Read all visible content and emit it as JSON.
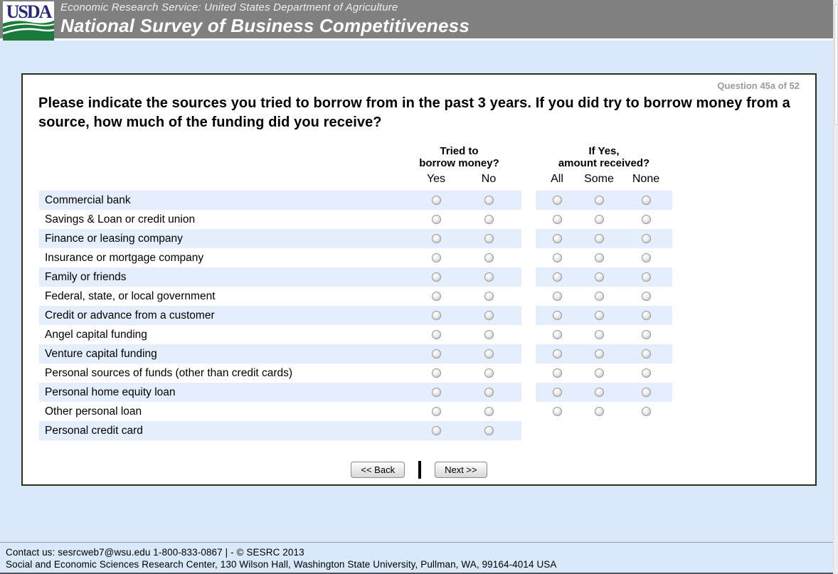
{
  "header": {
    "logo_text": "USDA",
    "agency_line": "Economic Research Service: United States Department of Agriculture",
    "survey_title": "National Survey of Business Competitiveness"
  },
  "question": {
    "progress_label": "Question 45a of 52",
    "text": "Please indicate the sources you tried to borrow from in the past 3 years. If you did try to borrow money from a source, how much of the funding did you receive?"
  },
  "table": {
    "group_headers": [
      {
        "line1": "Tried to",
        "line2": "borrow money?"
      },
      {
        "line1": "If Yes,",
        "line2": "amount received?"
      }
    ],
    "tried_options": [
      "Yes",
      "No"
    ],
    "amount_options": [
      "All",
      "Some",
      "None"
    ],
    "radio_state": "unselected",
    "rows": [
      {
        "label": "Commercial bank",
        "has_amount_options": true
      },
      {
        "label": "Savings & Loan or credit union",
        "has_amount_options": true
      },
      {
        "label": "Finance or leasing company",
        "has_amount_options": true
      },
      {
        "label": "Insurance or mortgage company",
        "has_amount_options": true
      },
      {
        "label": "Family or friends",
        "has_amount_options": true
      },
      {
        "label": "Federal, state, or local government",
        "has_amount_options": true
      },
      {
        "label": "Credit or advance from a customer",
        "has_amount_options": true
      },
      {
        "label": "Angel capital funding",
        "has_amount_options": true
      },
      {
        "label": "Venture capital funding",
        "has_amount_options": true
      },
      {
        "label": "Personal sources of funds (other than credit cards)",
        "has_amount_options": true
      },
      {
        "label": "Personal home equity loan",
        "has_amount_options": true
      },
      {
        "label": "Other personal loan",
        "has_amount_options": true
      },
      {
        "label": "Personal credit card",
        "has_amount_options": false
      }
    ]
  },
  "buttons": {
    "back_label": "<< Back",
    "next_label": "Next >>"
  },
  "footer": {
    "line1": "Contact us: sesrcweb7@wsu.edu 1-800-833-0867 | - © SESRC 2013",
    "line2": "Social and Economic Sciences Research Center, 130 Wilson Hall, Washington State University, Pullman, WA, 99164-4014 USA"
  },
  "colors": {
    "header_bg": "#808080",
    "page_bg": "#d9e8fb",
    "row_highlight": "#e4eefc",
    "panel_border": "#25351d",
    "logo_green": "#1a7a3c",
    "logo_navy": "#272974",
    "progress_text": "#9a9a9a"
  }
}
